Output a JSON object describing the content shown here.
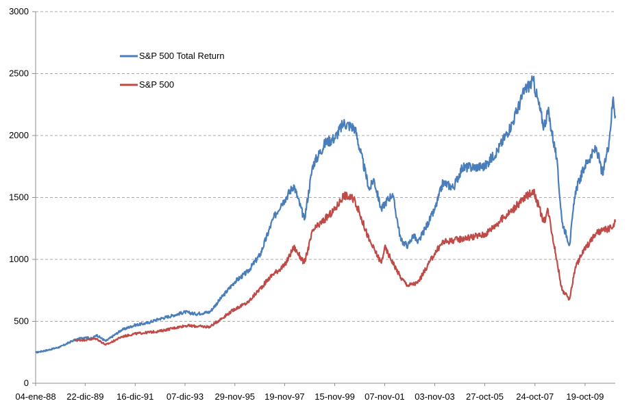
{
  "chart_data": {
    "type": "line",
    "title": "",
    "xlabel": "",
    "ylabel": "",
    "ylim": [
      0,
      3000
    ],
    "yticks": [
      0,
      500,
      1000,
      1500,
      2000,
      2500,
      3000
    ],
    "xlim": [
      "04-ene-88",
      "31-dic-10"
    ],
    "xticks": [
      "04-ene-88",
      "22-dic-89",
      "16-dic-91",
      "07-dic-93",
      "29-nov-95",
      "19-nov-97",
      "15-nov-99",
      "07-nov-01",
      "03-nov-03",
      "27-oct-05",
      "24-oct-07",
      "19-oct-09"
    ],
    "grid": "horizontal dashed",
    "legend_position": "top-left",
    "series": [
      {
        "name": "S&P 500 Total Return",
        "color": "#4a7ebb",
        "points": [
          [
            "04-ene-88",
            248
          ],
          [
            "01-jul-88",
            268
          ],
          [
            "01-ene-89",
            295
          ],
          [
            "01-jul-89",
            345
          ],
          [
            "22-dic-89",
            372
          ],
          [
            "01-abr-90",
            360
          ],
          [
            "01-jun-90",
            390
          ],
          [
            "15-oct-90",
            340
          ],
          [
            "01-ene-91",
            370
          ],
          [
            "01-jun-91",
            430
          ],
          [
            "16-dic-91",
            470
          ],
          [
            "01-jun-92",
            485
          ],
          [
            "01-dic-92",
            520
          ],
          [
            "01-jun-93",
            545
          ],
          [
            "07-dic-93",
            575
          ],
          [
            "01-may-94",
            560
          ],
          [
            "01-dic-94",
            575
          ],
          [
            "01-jun-95",
            700
          ],
          [
            "29-nov-95",
            820
          ],
          [
            "01-jun-96",
            900
          ],
          [
            "01-dic-96",
            1040
          ],
          [
            "01-jun-97",
            1320
          ],
          [
            "01-oct-97",
            1450
          ],
          [
            "19-nov-97",
            1480
          ],
          [
            "01-abr-98",
            1600
          ],
          [
            "01-sep-98",
            1320
          ],
          [
            "01-ene-99",
            1760
          ],
          [
            "01-jul-99",
            1940
          ],
          [
            "15-nov-99",
            1980
          ],
          [
            "24-mar-00",
            2100
          ],
          [
            "01-sep-00",
            2060
          ],
          [
            "01-abr-01",
            1560
          ],
          [
            "01-jun-01",
            1650
          ],
          [
            "21-sep-01",
            1400
          ],
          [
            "07-nov-01",
            1450
          ],
          [
            "01-mar-02",
            1530
          ],
          [
            "01-jul-02",
            1150
          ],
          [
            "09-oct-02",
            1110
          ],
          [
            "01-ene-03",
            1200
          ],
          [
            "01-mar-03",
            1130
          ],
          [
            "03-nov-03",
            1400
          ],
          [
            "01-mar-04",
            1620
          ],
          [
            "01-ago-04",
            1580
          ],
          [
            "01-dic-04",
            1740
          ],
          [
            "27-oct-05",
            1750
          ],
          [
            "01-may-06",
            1880
          ],
          [
            "01-dic-06",
            2100
          ],
          [
            "01-jun-07",
            2370
          ],
          [
            "01-oct-07",
            2440
          ],
          [
            "01-mar-08",
            2070
          ],
          [
            "01-may-08",
            2200
          ],
          [
            "01-sep-08",
            1820
          ],
          [
            "20-nov-08",
            1300
          ],
          [
            "09-mar-09",
            1120
          ],
          [
            "01-jun-09",
            1550
          ],
          [
            "19-oct-09",
            1760
          ],
          [
            "01-abr-10",
            1900
          ],
          [
            "01-jul-10",
            1680
          ],
          [
            "01-oct-10",
            1950
          ],
          [
            "01-dic-10",
            2310
          ],
          [
            "31-dic-10",
            2160
          ]
        ]
      },
      {
        "name": "S&P 500",
        "color": "#be4b48",
        "points": [
          [
            "01-ago-89",
            345
          ],
          [
            "22-dic-89",
            350
          ],
          [
            "01-jun-90",
            360
          ],
          [
            "15-oct-90",
            310
          ],
          [
            "01-ene-91",
            330
          ],
          [
            "01-jun-91",
            375
          ],
          [
            "16-dic-91",
            400
          ],
          [
            "01-dic-92",
            420
          ],
          [
            "07-dic-93",
            465
          ],
          [
            "01-dic-94",
            455
          ],
          [
            "29-nov-95",
            600
          ],
          [
            "01-jun-96",
            650
          ],
          [
            "01-jun-97",
            880
          ],
          [
            "19-nov-97",
            950
          ],
          [
            "01-abr-98",
            1100
          ],
          [
            "01-sep-98",
            970
          ],
          [
            "01-ene-99",
            1230
          ],
          [
            "15-nov-99",
            1400
          ],
          [
            "24-mar-00",
            1520
          ],
          [
            "01-sep-00",
            1480
          ],
          [
            "01-abr-01",
            1150
          ],
          [
            "21-sep-01",
            970
          ],
          [
            "07-nov-01",
            1100
          ],
          [
            "01-jul-02",
            850
          ],
          [
            "09-oct-02",
            790
          ],
          [
            "01-mar-03",
            810
          ],
          [
            "03-nov-03",
            1050
          ],
          [
            "01-mar-04",
            1140
          ],
          [
            "27-oct-05",
            1200
          ],
          [
            "01-dic-06",
            1400
          ],
          [
            "01-oct-07",
            1560
          ],
          [
            "01-mar-08",
            1300
          ],
          [
            "01-may-08",
            1400
          ],
          [
            "20-nov-08",
            750
          ],
          [
            "09-mar-09",
            680
          ],
          [
            "01-jun-09",
            940
          ],
          [
            "19-oct-09",
            1090
          ],
          [
            "01-abr-10",
            1210
          ],
          [
            "01-jul-10",
            1230
          ],
          [
            "01-dic-10",
            1260
          ],
          [
            "31-dic-10",
            1300
          ]
        ]
      }
    ]
  }
}
